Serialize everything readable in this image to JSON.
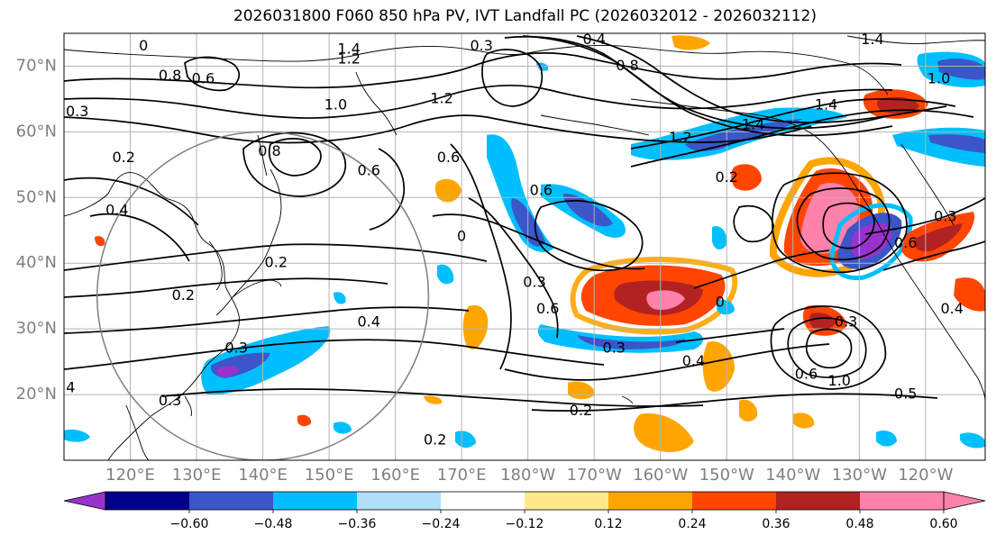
{
  "title": "2026031800 F060 850 hPa PV, IVT Landfall PC (2026032012 - 2026032112)",
  "map": {
    "projection": "PlateCarree",
    "lon_range": [
      110,
      249
    ],
    "lat_range": [
      10,
      75
    ],
    "lat_ticks": [
      {
        "lat": 70,
        "label": "70°N"
      },
      {
        "lat": 60,
        "label": "60°N"
      },
      {
        "lat": 50,
        "label": "50°N"
      },
      {
        "lat": 40,
        "label": "40°N"
      },
      {
        "lat": 30,
        "label": "30°N"
      },
      {
        "lat": 20,
        "label": "20°N"
      }
    ],
    "lon_ticks": [
      {
        "lon": 120,
        "label": "120°E"
      },
      {
        "lon": 130,
        "label": "130°E"
      },
      {
        "lon": 140,
        "label": "140°E"
      },
      {
        "lon": 150,
        "label": "150°E"
      },
      {
        "lon": 160,
        "label": "160°E"
      },
      {
        "lon": 170,
        "label": "170°E"
      },
      {
        "lon": 180,
        "label": "180°W"
      },
      {
        "lon": 190,
        "label": "170°W"
      },
      {
        "lon": 200,
        "label": "160°W"
      },
      {
        "lon": 210,
        "label": "150°W"
      },
      {
        "lon": 220,
        "label": "140°W"
      },
      {
        "lon": 230,
        "label": "130°W"
      },
      {
        "lon": 240,
        "label": "120°W"
      }
    ],
    "gridlines": true,
    "grid_color": "#b3b3b3",
    "range_circle": {
      "center_lon": 140,
      "center_lat": 35,
      "radius_deg": 25,
      "color": "#7f7f7f"
    },
    "contour_labels": [
      {
        "lon": 153,
        "lat": 72.5,
        "text": "1.4"
      },
      {
        "lon": 153,
        "lat": 71,
        "text": "1.2"
      },
      {
        "lon": 167,
        "lat": 65,
        "text": "1.2"
      },
      {
        "lon": 151,
        "lat": 64,
        "text": "1.0"
      },
      {
        "lon": 131,
        "lat": 68,
        "text": "0.6"
      },
      {
        "lon": 126,
        "lat": 68.5,
        "text": "0.8"
      },
      {
        "lon": 122,
        "lat": 73,
        "text": "0"
      },
      {
        "lon": 112,
        "lat": 63,
        "text": "0.3"
      },
      {
        "lon": 119,
        "lat": 56,
        "text": "0.2"
      },
      {
        "lon": 118,
        "lat": 48,
        "text": "0.4"
      },
      {
        "lon": 141,
        "lat": 57,
        "text": "0.8"
      },
      {
        "lon": 156,
        "lat": 54,
        "text": "0.6"
      },
      {
        "lon": 168,
        "lat": 56,
        "text": "0.6"
      },
      {
        "lon": 173,
        "lat": 73,
        "text": "0.3"
      },
      {
        "lon": 190,
        "lat": 74,
        "text": "0.4"
      },
      {
        "lon": 195,
        "lat": 70,
        "text": "0.8"
      },
      {
        "lon": 214,
        "lat": 61,
        "text": "1.4"
      },
      {
        "lon": 203,
        "lat": 59,
        "text": "1.2"
      },
      {
        "lon": 225,
        "lat": 64,
        "text": "1.4"
      },
      {
        "lon": 242,
        "lat": 68,
        "text": "1.0"
      },
      {
        "lon": 232,
        "lat": 74,
        "text": "1.4"
      },
      {
        "lon": 210,
        "lat": 53,
        "text": "0.2"
      },
      {
        "lon": 182,
        "lat": 51,
        "text": "0.6"
      },
      {
        "lon": 170,
        "lat": 44,
        "text": "0"
      },
      {
        "lon": 181,
        "lat": 37,
        "text": "0.3"
      },
      {
        "lon": 183,
        "lat": 33,
        "text": "0.6"
      },
      {
        "lon": 209,
        "lat": 34,
        "text": "0"
      },
      {
        "lon": 193,
        "lat": 27,
        "text": "0.3"
      },
      {
        "lon": 205,
        "lat": 25,
        "text": "0.4"
      },
      {
        "lon": 237,
        "lat": 43,
        "text": "0.6"
      },
      {
        "lon": 243,
        "lat": 47,
        "text": "0.3"
      },
      {
        "lon": 244,
        "lat": 33,
        "text": "0.4"
      },
      {
        "lon": 156,
        "lat": 31,
        "text": "0.4"
      },
      {
        "lon": 128,
        "lat": 35,
        "text": "0.2"
      },
      {
        "lon": 136,
        "lat": 27,
        "text": "0.3"
      },
      {
        "lon": 142,
        "lat": 40,
        "text": "0.2"
      },
      {
        "lon": 126,
        "lat": 19,
        "text": "0.3"
      },
      {
        "lon": 111,
        "lat": 21,
        "text": "4"
      },
      {
        "lon": 188,
        "lat": 17.5,
        "text": "0.2"
      },
      {
        "lon": 166,
        "lat": 13,
        "text": "0.2"
      },
      {
        "lon": 222,
        "lat": 23,
        "text": "0.6"
      },
      {
        "lon": 227,
        "lat": 22,
        "text": "1.0"
      },
      {
        "lon": 237,
        "lat": 20,
        "text": "0.5"
      },
      {
        "lon": 228,
        "lat": 31,
        "text": "0.3"
      }
    ]
  },
  "colorbar": {
    "ticks": [
      "−0.60",
      "−0.48",
      "−0.36",
      "−0.24",
      "−0.12",
      "0.12",
      "0.24",
      "0.36",
      "0.48",
      "0.60"
    ],
    "colors": [
      "#9932cc",
      "#00008b",
      "#3a56c8",
      "#00bfff",
      "#b0e0fa",
      "#ffffff",
      "#ffe98a",
      "#ffa500",
      "#ff4500",
      "#b22222",
      "#ff82ab",
      "#ff82ab"
    ]
  },
  "legend_colors": {
    "land_line": "#000000",
    "contour_line": "#000000"
  }
}
